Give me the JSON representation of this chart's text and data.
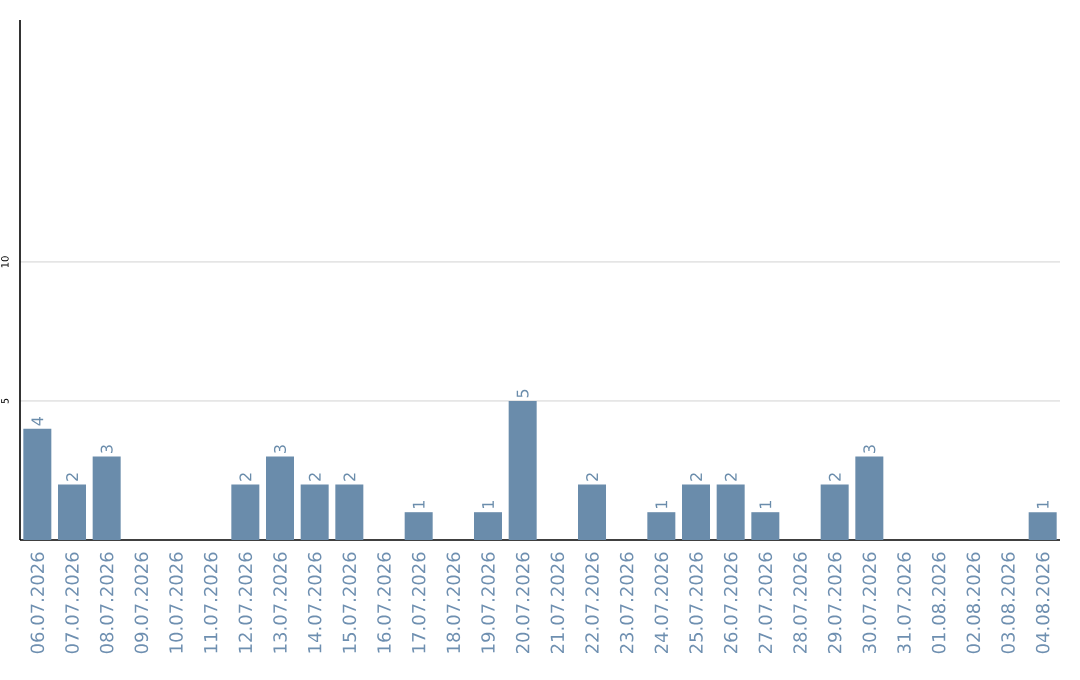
{
  "chart_data": {
    "type": "bar",
    "categories": [
      "06.07.2026",
      "07.07.2026",
      "08.07.2026",
      "09.07.2026",
      "10.07.2026",
      "11.07.2026",
      "12.07.2026",
      "13.07.2026",
      "14.07.2026",
      "15.07.2026",
      "16.07.2026",
      "17.07.2026",
      "18.07.2026",
      "19.07.2026",
      "20.07.2026",
      "21.07.2026",
      "22.07.2026",
      "23.07.2026",
      "24.07.2026",
      "25.07.2026",
      "26.07.2026",
      "27.07.2026",
      "28.07.2026",
      "29.07.2026",
      "30.07.2026",
      "31.07.2026",
      "01.08.2026",
      "02.08.2026",
      "03.08.2026",
      "04.08.2026"
    ],
    "values": [
      4,
      2,
      3,
      0,
      0,
      0,
      2,
      3,
      2,
      2,
      0,
      1,
      0,
      1,
      5,
      0,
      2,
      0,
      1,
      2,
      2,
      1,
      0,
      2,
      3,
      0,
      0,
      0,
      0,
      1
    ],
    "value_labels": [
      "4",
      "2",
      "3",
      null,
      null,
      null,
      "2",
      "3",
      "2",
      "2",
      null,
      "1",
      null,
      "1",
      "5",
      null,
      "2",
      null,
      "1",
      "2",
      "2",
      "1",
      null,
      "2",
      "3",
      null,
      null,
      null,
      null,
      "1"
    ],
    "color": "#6a8cab",
    "ylim": [
      0,
      18.7
    ],
    "yticks": [
      5,
      10
    ],
    "grid": "y"
  }
}
